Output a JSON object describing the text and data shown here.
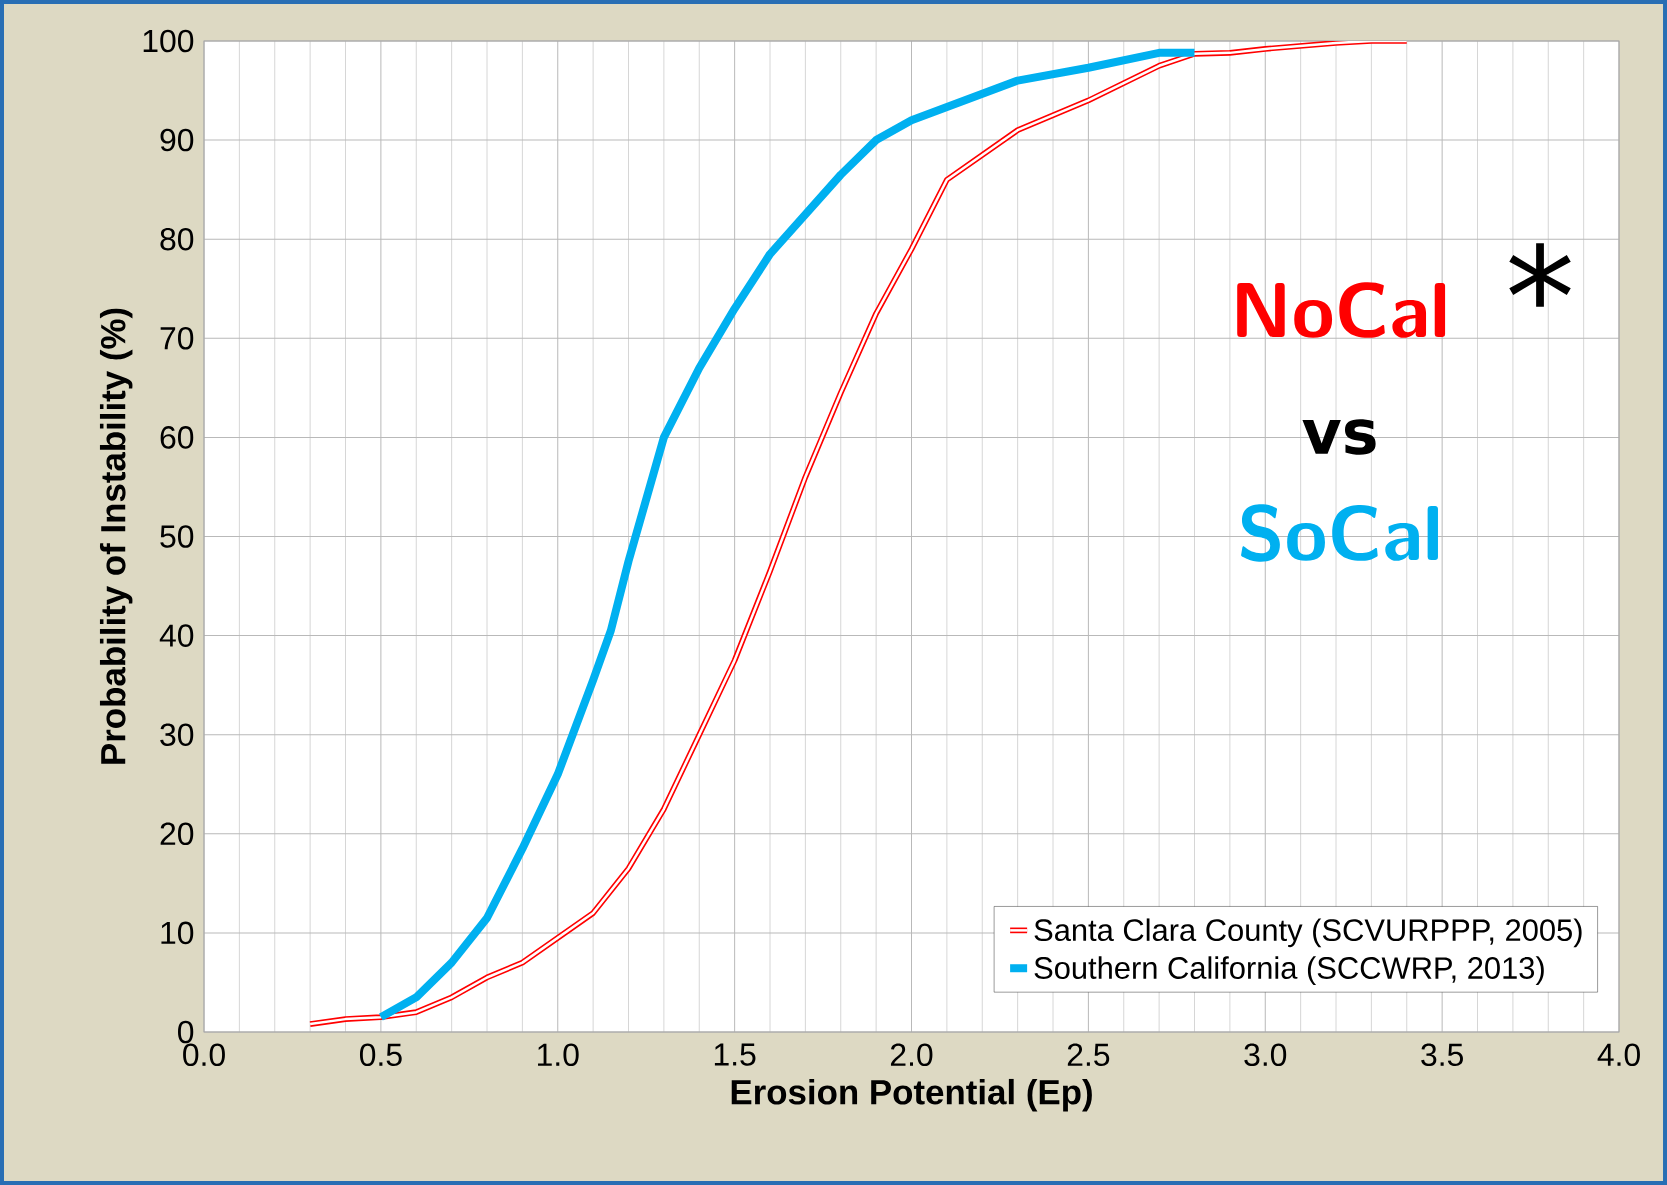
{
  "chart_data": {
    "type": "line",
    "xlabel": "Erosion Potential (Ep)",
    "ylabel": "Probability of Instability (%)",
    "xlim": [
      0,
      4
    ],
    "ylim": [
      0,
      100
    ],
    "xticks": [
      {
        "value": 0,
        "label": "0.0"
      },
      {
        "value": 0.5,
        "label": "0.5"
      },
      {
        "value": 1,
        "label": "1.0"
      },
      {
        "value": 1.5,
        "label": "1.5"
      },
      {
        "value": 2,
        "label": "2.0"
      },
      {
        "value": 2.5,
        "label": "2.5"
      },
      {
        "value": 3,
        "label": "3.0"
      },
      {
        "value": 3.5,
        "label": "3.5"
      },
      {
        "value": 4,
        "label": "4.0"
      }
    ],
    "yticks": [
      0,
      10,
      20,
      30,
      40,
      50,
      60,
      70,
      80,
      90,
      100
    ],
    "grid": true,
    "legend": "bottom right",
    "marker": "none",
    "line_style": "solid",
    "series": [
      {
        "name": "Santa Clara County (SCVURPPP, 2005)",
        "color": "#ff0000",
        "x": [
          0.3,
          0.4,
          0.5,
          0.6,
          0.7,
          0.8,
          0.9,
          1.0,
          1.1,
          1.2,
          1.3,
          1.4,
          1.5,
          1.6,
          1.7,
          1.8,
          1.9,
          2.0,
          2.1,
          2.3,
          2.5,
          2.7,
          2.8,
          2.9,
          3.0,
          3.2,
          3.3,
          3.4
        ],
        "values": [
          0.8,
          1.3,
          1.5,
          2.0,
          3.5,
          5.5,
          7,
          9.5,
          12,
          16.5,
          22.5,
          30,
          37.5,
          46.5,
          56,
          64.5,
          72.5,
          79,
          86,
          91,
          94,
          97.5,
          98.7,
          98.8,
          99.2,
          99.8,
          100,
          100
        ]
      },
      {
        "name": "Southern California (SCCWRP, 2013)",
        "color": "#00b0f0",
        "x": [
          0.5,
          0.6,
          0.7,
          0.8,
          0.9,
          1.0,
          1.1,
          1.15,
          1.2,
          1.3,
          1.4,
          1.5,
          1.6,
          1.7,
          1.8,
          1.9,
          2.0,
          2.3,
          2.5,
          2.7,
          2.8
        ],
        "values": [
          1.5,
          3.5,
          7,
          11.5,
          18.5,
          26,
          35.5,
          40.5,
          47.5,
          60,
          67,
          73,
          78.5,
          82.5,
          86.5,
          90,
          92,
          96,
          97.3,
          98.8,
          98.8
        ]
      }
    ],
    "annotations": [
      "NoCal",
      "*",
      "vs",
      "SoCal"
    ]
  }
}
